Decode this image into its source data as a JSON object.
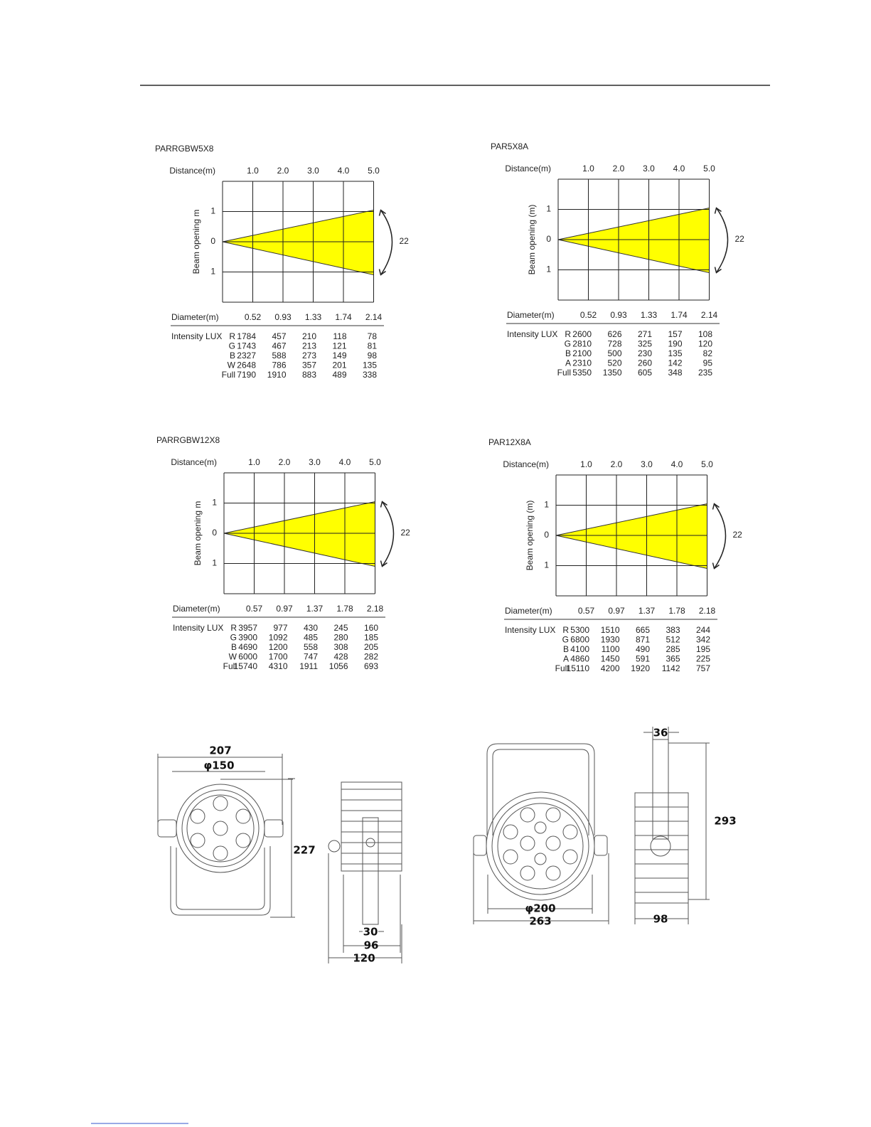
{
  "diagrams": [
    {
      "name": "PARRGBW5X8",
      "distance_label": "Distance(m)",
      "distances": [
        "1.0",
        "2.0",
        "3.0",
        "4.0",
        "5.0"
      ],
      "beam_label": "Beam opening  m",
      "beam_ticks": [
        "1",
        "0",
        "1"
      ],
      "angle": "22",
      "diameter_label": "Diameter(m)",
      "diameters": [
        "0.52",
        "0.93",
        "1.33",
        "1.74",
        "2.14"
      ],
      "intensity_label": "Intensity LUX",
      "rows": [
        {
          "channel": "R",
          "values": [
            1784,
            457,
            210,
            118,
            78
          ]
        },
        {
          "channel": "G",
          "values": [
            1743,
            467,
            213,
            121,
            81
          ]
        },
        {
          "channel": "B",
          "values": [
            2327,
            588,
            273,
            149,
            98
          ]
        },
        {
          "channel": "W",
          "values": [
            2648,
            786,
            357,
            201,
            135
          ]
        },
        {
          "channel": "Full",
          "values": [
            7190,
            1910,
            883,
            489,
            338
          ]
        }
      ]
    },
    {
      "name": "PAR5X8A",
      "distance_label": "Distance(m)",
      "distances": [
        "1.0",
        "2.0",
        "3.0",
        "4.0",
        "5.0"
      ],
      "beam_label": "Beam opening (m)",
      "beam_ticks": [
        "1",
        "0",
        "1"
      ],
      "angle": "22",
      "diameter_label": "Diameter(m)",
      "diameters": [
        "0.52",
        "0.93",
        "1.33",
        "1.74",
        "2.14"
      ],
      "intensity_label": "Intensity LUX",
      "rows": [
        {
          "channel": "R",
          "values": [
            2600,
            626,
            271,
            157,
            108
          ]
        },
        {
          "channel": "G",
          "values": [
            2810,
            728,
            325,
            190,
            120
          ]
        },
        {
          "channel": "B",
          "values": [
            2100,
            500,
            230,
            135,
            82
          ]
        },
        {
          "channel": "A",
          "values": [
            2310,
            520,
            260,
            142,
            95
          ]
        },
        {
          "channel": "Full",
          "values": [
            5350,
            1350,
            605,
            348,
            235
          ]
        }
      ]
    },
    {
      "name": "PARRGBW12X8",
      "distance_label": "Distance(m)",
      "distances": [
        "1.0",
        "2.0",
        "3.0",
        "4.0",
        "5.0"
      ],
      "beam_label": "Beam opening  m",
      "beam_ticks": [
        "1",
        "0",
        "1"
      ],
      "angle": "22",
      "diameter_label": "Diameter(m)",
      "diameters": [
        "0.57",
        "0.97",
        "1.37",
        "1.78",
        "2.18"
      ],
      "intensity_label": "Intensity LUX",
      "rows": [
        {
          "channel": "R",
          "values": [
            3957,
            977,
            430,
            245,
            160
          ]
        },
        {
          "channel": "G",
          "values": [
            3900,
            1092,
            485,
            280,
            185
          ]
        },
        {
          "channel": "B",
          "values": [
            4690,
            1200,
            558,
            308,
            205
          ]
        },
        {
          "channel": "W",
          "values": [
            6000,
            1700,
            747,
            428,
            282
          ]
        },
        {
          "channel": "Full",
          "values": [
            15740,
            4310,
            1911,
            1056,
            693
          ]
        }
      ]
    },
    {
      "name": "PAR12X8A",
      "distance_label": "Distance(m)",
      "distances": [
        "1.0",
        "2.0",
        "3.0",
        "4.0",
        "5.0"
      ],
      "beam_label": "Beam opening (m)",
      "beam_ticks": [
        "1",
        "0",
        "1"
      ],
      "angle": "22",
      "diameter_label": "Diameter(m)",
      "diameters": [
        "0.57",
        "0.97",
        "1.37",
        "1.78",
        "2.18"
      ],
      "intensity_label": "Intensity LUX",
      "rows": [
        {
          "channel": "R",
          "values": [
            5300,
            1510,
            665,
            383,
            244
          ]
        },
        {
          "channel": "G",
          "values": [
            6800,
            1930,
            871,
            512,
            342
          ]
        },
        {
          "channel": "B",
          "values": [
            4100,
            1100,
            490,
            285,
            195
          ]
        },
        {
          "channel": "A",
          "values": [
            4860,
            1450,
            591,
            365,
            225
          ]
        },
        {
          "channel": "Full",
          "values": [
            15110,
            4200,
            1920,
            1142,
            757
          ]
        }
      ]
    }
  ],
  "dimensions": {
    "small": {
      "width": "207",
      "diameter": "φ150",
      "height": "227",
      "handle": "30",
      "depth": "96",
      "depth_total": "120"
    },
    "large": {
      "handle": "36",
      "height": "293",
      "diameter": "φ200",
      "width": "263",
      "depth": "98"
    }
  }
}
